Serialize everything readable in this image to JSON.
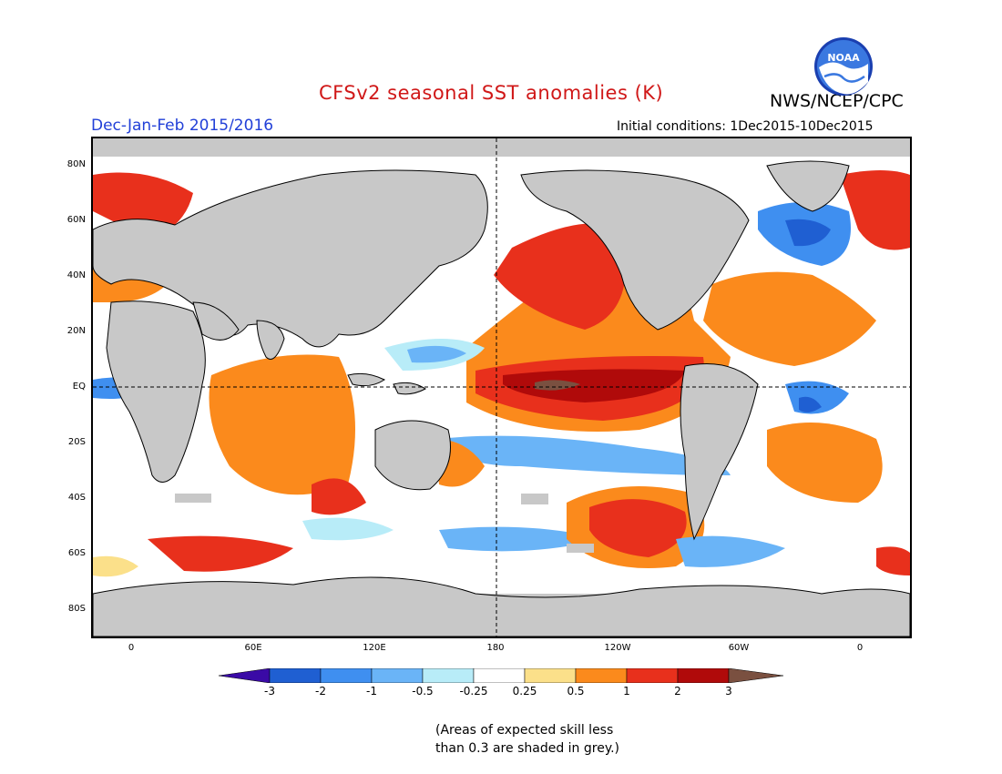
{
  "header": {
    "title": "CFSv2 seasonal SST anomalies (K)",
    "agency": "NWS/NCEP/CPC",
    "logo_text": "NOAA",
    "season": "Dec-Jan-Feb 2015/2016",
    "initial_conditions": "Initial conditions: 1Dec2015-10Dec2015"
  },
  "map": {
    "lat_labels": [
      "80N",
      "60N",
      "40N",
      "20N",
      "EQ",
      "20S",
      "40S",
      "60S",
      "80S"
    ],
    "lon_labels": [
      "0",
      "60E",
      "120E",
      "180",
      "120W",
      "60W",
      "0"
    ]
  },
  "colorbar": {
    "ticks": [
      "-3",
      "-2",
      "-1",
      "-0.5",
      "-0.25",
      "0.25",
      "0.5",
      "1",
      "2",
      "3"
    ],
    "colors": [
      "#3a0aa6",
      "#1f5fd2",
      "#3f8ff0",
      "#6ab4f7",
      "#b8ecf8",
      "#ffffff",
      "#fbe08a",
      "#fb8a1c",
      "#e8301c",
      "#b00a0a",
      "#7a5040"
    ]
  },
  "note": {
    "line1": "(Areas of expected skill less",
    "line2": "than 0.3 are shaded in grey.)"
  }
}
